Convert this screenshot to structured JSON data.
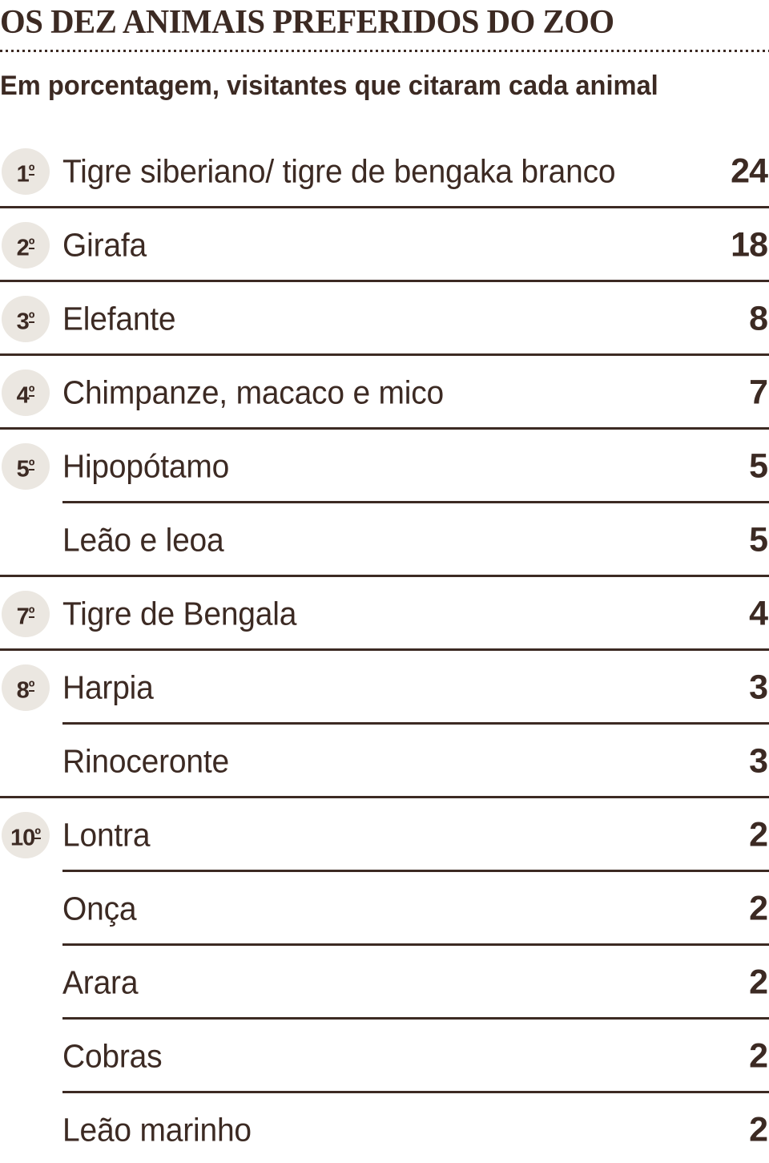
{
  "colors": {
    "ink": "#3C2A23",
    "badge_bg": "#EBE7E1",
    "background": "#FFFFFF"
  },
  "chart_data": {
    "type": "table",
    "title": "OS DEZ ANIMAIS PREFERIDOS DO ZOO",
    "subtitle": "Em porcentagem, visitantes que citaram cada animal",
    "unit": "percent of visitors citing each animal",
    "columns": [
      "rank",
      "animal",
      "value"
    ],
    "rows": [
      {
        "rank_number": "1",
        "rank_ordinal": "º",
        "animal": "Tigre siberiano/ tigre de bengaka branco",
        "value": 24,
        "divider": "full"
      },
      {
        "rank_number": "2",
        "rank_ordinal": "º",
        "animal": "Girafa",
        "value": 18,
        "divider": "full"
      },
      {
        "rank_number": "3",
        "rank_ordinal": "º",
        "animal": "Elefante",
        "value": 8,
        "divider": "full"
      },
      {
        "rank_number": "4",
        "rank_ordinal": "º",
        "animal": "Chimpanze, macaco e mico",
        "value": 7,
        "divider": "full"
      },
      {
        "rank_number": "5",
        "rank_ordinal": "º",
        "animal": "Hipopótamo",
        "value": 5,
        "divider": "indent"
      },
      {
        "rank_number": "",
        "rank_ordinal": "",
        "animal": "Leão e leoa",
        "value": 5,
        "divider": "full"
      },
      {
        "rank_number": "7",
        "rank_ordinal": "º",
        "animal": "Tigre de Bengala",
        "value": 4,
        "divider": "full"
      },
      {
        "rank_number": "8",
        "rank_ordinal": "º",
        "animal": "Harpia",
        "value": 3,
        "divider": "indent"
      },
      {
        "rank_number": "",
        "rank_ordinal": "",
        "animal": "Rinoceronte",
        "value": 3,
        "divider": "full"
      },
      {
        "rank_number": "10",
        "rank_ordinal": "º",
        "animal": "Lontra",
        "value": 2,
        "divider": "indent"
      },
      {
        "rank_number": "",
        "rank_ordinal": "",
        "animal": "Onça",
        "value": 2,
        "divider": "indent"
      },
      {
        "rank_number": "",
        "rank_ordinal": "",
        "animal": "Arara",
        "value": 2,
        "divider": "indent"
      },
      {
        "rank_number": "",
        "rank_ordinal": "",
        "animal": "Cobras",
        "value": 2,
        "divider": "indent"
      },
      {
        "rank_number": "",
        "rank_ordinal": "",
        "animal": "Leão marinho",
        "value": 2,
        "divider": "none"
      }
    ]
  }
}
